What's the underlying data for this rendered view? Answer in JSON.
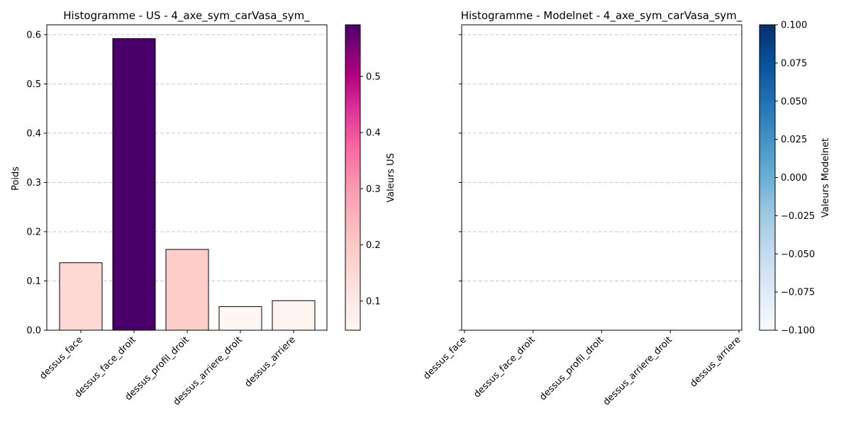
{
  "chart_data": [
    {
      "type": "bar",
      "title": "Histogramme - US - 4_axe_sym_carVasa_sym_",
      "xlabel": "",
      "ylabel": "Poids",
      "categories": [
        "dessus_face",
        "dessus_face_droit",
        "dessus_profil_droit",
        "dessus_arriere_droit",
        "dessus_arriere"
      ],
      "values": [
        0.137,
        0.592,
        0.164,
        0.048,
        0.06
      ],
      "ylim": [
        0,
        0.62
      ],
      "yticks": [
        0.0,
        0.1,
        0.2,
        0.3,
        0.4,
        0.5,
        0.6
      ],
      "ytick_labels": [
        "0.0",
        "0.1",
        "0.2",
        "0.3",
        "0.4",
        "0.5",
        "0.6"
      ],
      "grid": "y dashed",
      "colorbar": {
        "label": "Valeurs US",
        "colormap": "RdPu",
        "range": [
          0.048,
          0.592
        ],
        "ticks": [
          0.1,
          0.2,
          0.3,
          0.4,
          0.5
        ],
        "tick_labels": [
          "0.1",
          "0.2",
          "0.3",
          "0.4",
          "0.5"
        ]
      }
    },
    {
      "type": "bar",
      "title": "Histogramme - Modelnet - 4_axe_sym_carVasa_sym_",
      "xlabel": "",
      "ylabel": "",
      "categories": [
        "dessus_face",
        "dessus_face_droit",
        "dessus_profil_droit",
        "dessus_arriere_droit",
        "dessus_arriere"
      ],
      "values": [
        0,
        0,
        0,
        0,
        0
      ],
      "ylim": [
        0,
        0.62
      ],
      "yticks": [
        0.0,
        0.1,
        0.2,
        0.3,
        0.4,
        0.5,
        0.6
      ],
      "grid": "y dashed",
      "colorbar": {
        "label": "Valeurs Modelnet",
        "colormap": "Blues",
        "range": [
          -0.1,
          0.1
        ],
        "ticks": [
          -0.1,
          -0.075,
          -0.05,
          -0.025,
          0.0,
          0.025,
          0.05,
          0.075,
          0.1
        ],
        "tick_labels": [
          "−0.100",
          "−0.075",
          "−0.050",
          "−0.025",
          "0.000",
          "0.025",
          "0.050",
          "0.075",
          "0.100"
        ]
      }
    }
  ]
}
